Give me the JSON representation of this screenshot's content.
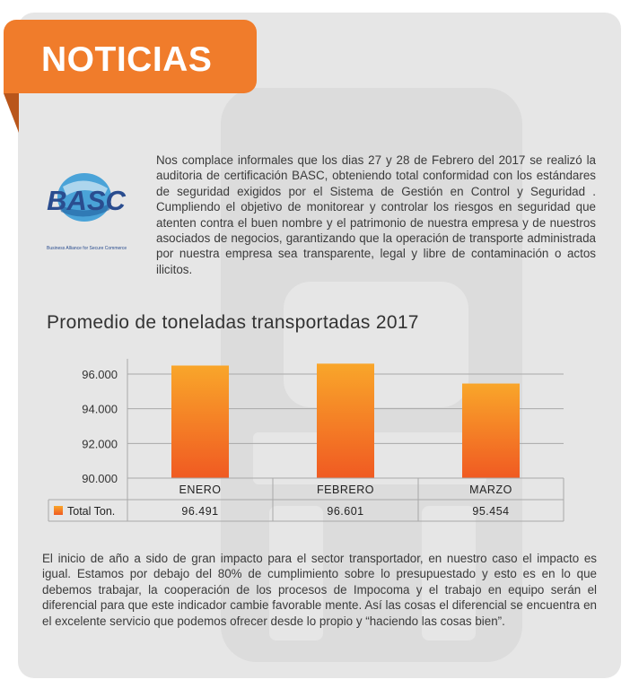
{
  "header": {
    "title": "NOTICIAS",
    "accent_color": "#f07c2b"
  },
  "logo": {
    "text": "BASC",
    "tagline": "Business Alliance for Secure Commerce",
    "icon": "globe-icon"
  },
  "intro_text": "Nos complace informales que los dias 27 y 28 de Febrero del 2017 se realizó la auditoria de certificación BASC, obteniendo total conformidad con los estándares de seguridad exigidos por el Sistema de Gestión en Control y Seguridad . Cumpliendo el objetivo de monitorear y controlar los riesgos en seguridad que atenten contra el buen nombre y el patrimonio de nuestra empresa y de nuestros asociados de negocios, garantizando que la operación de transporte administrada por nuestra empresa sea transparente, legal y libre de contaminación o actos ilicitos.",
  "chart_data": {
    "type": "bar",
    "title": "Promedio de toneladas transportadas 2017",
    "categories": [
      "ENERO",
      "FEBRERO",
      "MARZO"
    ],
    "series": [
      {
        "name": "Total Ton.",
        "values": [
          96491,
          96601,
          95454
        ],
        "value_labels": [
          "96.491",
          "96.601",
          "95.454"
        ],
        "color": "#f58220"
      }
    ],
    "y_ticks": [
      90000,
      92000,
      94000,
      96000
    ],
    "y_tick_labels": [
      "90.000",
      "92.000",
      "94.000",
      "96.000"
    ],
    "ylim": [
      90000,
      96000
    ],
    "grid": true,
    "legend": "data-table",
    "xlabel": "",
    "ylabel": ""
  },
  "outro_text": "El inicio de año a sido de gran impacto para el sector transportador, en nuestro caso el impacto es igual. Estamos por debajo del 80% de cumplimiento sobre lo presupuestado y esto es en lo que debemos trabajar, la cooperación de los procesos de Impocoma y el trabajo en equipo serán el diferencial para que este indicador cambie favorable mente. Así las cosas el diferencial se encuentra en el excelente servicio que podemos ofrecer desde lo propio y “haciendo las cosas bien”."
}
